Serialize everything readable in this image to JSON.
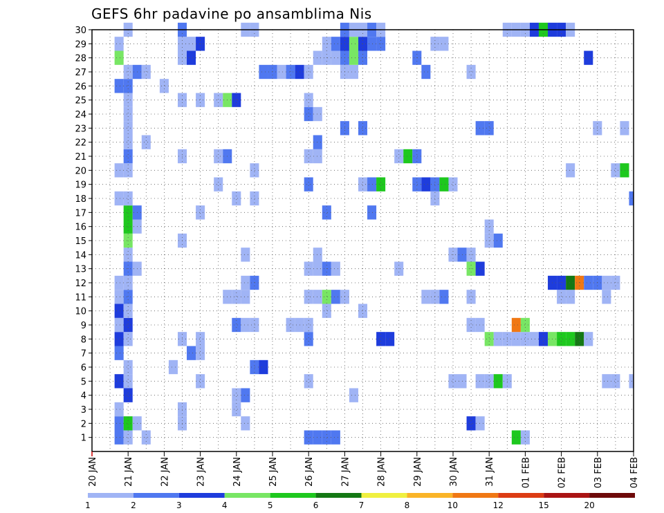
{
  "chart_data": {
    "type": "heatmap",
    "title": "GEFS 6hr padavine po ansamblima Nis",
    "xlabel": "",
    "ylabel": "",
    "x_ticks": [
      "20 JAN",
      "21 JAN",
      "22 JAN",
      "23 JAN",
      "24 JAN",
      "25 JAN",
      "26 JAN",
      "27 JAN",
      "28 JAN",
      "29 JAN",
      "30 JAN",
      "31 JAN",
      "01 FEB",
      "02 FEB",
      "03 FEB",
      "04 FEB"
    ],
    "y_ticks": [
      1,
      2,
      3,
      4,
      5,
      6,
      7,
      8,
      9,
      10,
      11,
      12,
      13,
      14,
      15,
      16,
      17,
      18,
      19,
      20,
      21,
      22,
      23,
      24,
      25,
      26,
      27,
      28,
      29,
      30
    ],
    "xlim_steps": [
      0,
      60
    ],
    "x_step_hours": 6,
    "ylim": [
      0,
      30
    ],
    "grid": true,
    "legend": {
      "placement": "bottom",
      "labels": [
        "1",
        "2",
        "3",
        "4",
        "5",
        "6",
        "7",
        "8",
        "10",
        "12",
        "15",
        "20"
      ],
      "colors": [
        "#a0b4f5",
        "#5078f0",
        "#1e3cdc",
        "#78e664",
        "#1ec81e",
        "#147814",
        "#f0f040",
        "#fab428",
        "#f07814",
        "#dc3c14",
        "#aa1414",
        "#6e0a0a"
      ]
    },
    "cell_rows": [
      {
        "ensemble": 1,
        "cells": [
          [
            3,
            2
          ],
          [
            4,
            1
          ],
          [
            6,
            1
          ],
          [
            24,
            2
          ],
          [
            25,
            2
          ],
          [
            26,
            2
          ],
          [
            27,
            2
          ],
          [
            47,
            5
          ],
          [
            48,
            1
          ]
        ]
      },
      {
        "ensemble": 2,
        "cells": [
          [
            3,
            2
          ],
          [
            4,
            5
          ],
          [
            5,
            1
          ],
          [
            10,
            1
          ],
          [
            17,
            1
          ],
          [
            42,
            3
          ],
          [
            43,
            1
          ]
        ]
      },
      {
        "ensemble": 3,
        "cells": [
          [
            3,
            1
          ],
          [
            10,
            1
          ],
          [
            16,
            1
          ]
        ]
      },
      {
        "ensemble": 4,
        "cells": [
          [
            4,
            3
          ],
          [
            16,
            1
          ],
          [
            17,
            2
          ],
          [
            29,
            1
          ]
        ]
      },
      {
        "ensemble": 5,
        "cells": [
          [
            3,
            3
          ],
          [
            4,
            1
          ],
          [
            12,
            1
          ],
          [
            24,
            1
          ],
          [
            40,
            1
          ],
          [
            41,
            1
          ],
          [
            43,
            1
          ],
          [
            44,
            1
          ],
          [
            45,
            5
          ],
          [
            46,
            1
          ],
          [
            57,
            1
          ],
          [
            58,
            1
          ],
          [
            60,
            1
          ]
        ]
      },
      {
        "ensemble": 6,
        "cells": [
          [
            4,
            1
          ],
          [
            9,
            1
          ],
          [
            18,
            2
          ],
          [
            19,
            3
          ]
        ]
      },
      {
        "ensemble": 7,
        "cells": [
          [
            3,
            2
          ],
          [
            11,
            2
          ],
          [
            12,
            1
          ]
        ]
      },
      {
        "ensemble": 8,
        "cells": [
          [
            3,
            3
          ],
          [
            4,
            1
          ],
          [
            10,
            1
          ],
          [
            12,
            1
          ],
          [
            24,
            2
          ],
          [
            32,
            3
          ],
          [
            33,
            3
          ],
          [
            44,
            4
          ],
          [
            45,
            1
          ],
          [
            46,
            1
          ],
          [
            47,
            1
          ],
          [
            48,
            1
          ],
          [
            49,
            1
          ],
          [
            50,
            3
          ],
          [
            51,
            4
          ],
          [
            52,
            5
          ],
          [
            53,
            5
          ],
          [
            54,
            6
          ],
          [
            55,
            1
          ]
        ]
      },
      {
        "ensemble": 9,
        "cells": [
          [
            3,
            1
          ],
          [
            4,
            3
          ],
          [
            16,
            2
          ],
          [
            17,
            1
          ],
          [
            18,
            1
          ],
          [
            22,
            1
          ],
          [
            23,
            1
          ],
          [
            24,
            1
          ],
          [
            42,
            1
          ],
          [
            43,
            1
          ],
          [
            47,
            9
          ],
          [
            48,
            4
          ]
        ]
      },
      {
        "ensemble": 10,
        "cells": [
          [
            3,
            3
          ],
          [
            4,
            1
          ],
          [
            26,
            1
          ],
          [
            30,
            1
          ]
        ]
      },
      {
        "ensemble": 11,
        "cells": [
          [
            3,
            1
          ],
          [
            4,
            2
          ],
          [
            15,
            1
          ],
          [
            16,
            1
          ],
          [
            17,
            1
          ],
          [
            24,
            1
          ],
          [
            25,
            1
          ],
          [
            26,
            4
          ],
          [
            27,
            2
          ],
          [
            28,
            1
          ],
          [
            37,
            1
          ],
          [
            38,
            1
          ],
          [
            39,
            2
          ],
          [
            42,
            1
          ],
          [
            52,
            1
          ],
          [
            53,
            1
          ],
          [
            57,
            1
          ]
        ]
      },
      {
        "ensemble": 12,
        "cells": [
          [
            3,
            1
          ],
          [
            4,
            1
          ],
          [
            17,
            1
          ],
          [
            18,
            2
          ],
          [
            51,
            3
          ],
          [
            52,
            3
          ],
          [
            53,
            6
          ],
          [
            54,
            9
          ],
          [
            55,
            2
          ],
          [
            56,
            2
          ],
          [
            57,
            1
          ],
          [
            58,
            1
          ]
        ]
      },
      {
        "ensemble": 13,
        "cells": [
          [
            4,
            2
          ],
          [
            5,
            1
          ],
          [
            24,
            1
          ],
          [
            25,
            1
          ],
          [
            26,
            2
          ],
          [
            27,
            1
          ],
          [
            34,
            1
          ],
          [
            42,
            4
          ],
          [
            43,
            3
          ]
        ]
      },
      {
        "ensemble": 14,
        "cells": [
          [
            4,
            1
          ],
          [
            17,
            1
          ],
          [
            25,
            1
          ],
          [
            40,
            1
          ],
          [
            41,
            2
          ],
          [
            42,
            1
          ]
        ]
      },
      {
        "ensemble": 15,
        "cells": [
          [
            4,
            4
          ],
          [
            10,
            1
          ],
          [
            44,
            1
          ],
          [
            45,
            2
          ]
        ]
      },
      {
        "ensemble": 16,
        "cells": [
          [
            4,
            5
          ],
          [
            5,
            1
          ],
          [
            44,
            1
          ]
        ]
      },
      {
        "ensemble": 17,
        "cells": [
          [
            4,
            5
          ],
          [
            5,
            2
          ],
          [
            12,
            1
          ],
          [
            26,
            2
          ],
          [
            31,
            2
          ]
        ]
      },
      {
        "ensemble": 18,
        "cells": [
          [
            3,
            1
          ],
          [
            4,
            1
          ],
          [
            16,
            1
          ],
          [
            18,
            1
          ],
          [
            38,
            1
          ],
          [
            60,
            2
          ]
        ]
      },
      {
        "ensemble": 19,
        "cells": [
          [
            14,
            1
          ],
          [
            24,
            2
          ],
          [
            30,
            1
          ],
          [
            31,
            2
          ],
          [
            32,
            5
          ],
          [
            36,
            2
          ],
          [
            37,
            3
          ],
          [
            38,
            2
          ],
          [
            39,
            5
          ],
          [
            40,
            1
          ]
        ]
      },
      {
        "ensemble": 20,
        "cells": [
          [
            3,
            1
          ],
          [
            4,
            1
          ],
          [
            18,
            1
          ],
          [
            53,
            1
          ],
          [
            58,
            1
          ],
          [
            59,
            5
          ]
        ]
      },
      {
        "ensemble": 21,
        "cells": [
          [
            4,
            2
          ],
          [
            10,
            1
          ],
          [
            14,
            1
          ],
          [
            15,
            2
          ],
          [
            24,
            1
          ],
          [
            25,
            1
          ],
          [
            34,
            1
          ],
          [
            35,
            5
          ],
          [
            36,
            2
          ]
        ]
      },
      {
        "ensemble": 22,
        "cells": [
          [
            4,
            1
          ],
          [
            6,
            1
          ],
          [
            25,
            2
          ]
        ]
      },
      {
        "ensemble": 23,
        "cells": [
          [
            4,
            1
          ],
          [
            28,
            2
          ],
          [
            30,
            2
          ],
          [
            43,
            2
          ],
          [
            44,
            2
          ],
          [
            56,
            1
          ],
          [
            59,
            1
          ]
        ]
      },
      {
        "ensemble": 24,
        "cells": [
          [
            4,
            1
          ],
          [
            24,
            2
          ],
          [
            25,
            1
          ]
        ]
      },
      {
        "ensemble": 25,
        "cells": [
          [
            4,
            1
          ],
          [
            10,
            1
          ],
          [
            12,
            1
          ],
          [
            14,
            1
          ],
          [
            15,
            4
          ],
          [
            16,
            3
          ],
          [
            24,
            1
          ]
        ]
      },
      {
        "ensemble": 26,
        "cells": [
          [
            3,
            2
          ],
          [
            4,
            2
          ],
          [
            8,
            1
          ]
        ]
      },
      {
        "ensemble": 27,
        "cells": [
          [
            4,
            1
          ],
          [
            5,
            2
          ],
          [
            6,
            1
          ],
          [
            19,
            2
          ],
          [
            20,
            2
          ],
          [
            21,
            1
          ],
          [
            22,
            2
          ],
          [
            23,
            3
          ],
          [
            24,
            1
          ],
          [
            28,
            1
          ],
          [
            29,
            1
          ],
          [
            37,
            2
          ],
          [
            42,
            1
          ]
        ]
      },
      {
        "ensemble": 28,
        "cells": [
          [
            3,
            4
          ],
          [
            10,
            1
          ],
          [
            11,
            3
          ],
          [
            25,
            1
          ],
          [
            26,
            1
          ],
          [
            27,
            1
          ],
          [
            28,
            2
          ],
          [
            29,
            4
          ],
          [
            30,
            2
          ],
          [
            36,
            2
          ],
          [
            55,
            3
          ]
        ]
      },
      {
        "ensemble": 29,
        "cells": [
          [
            3,
            1
          ],
          [
            10,
            1
          ],
          [
            11,
            1
          ],
          [
            12,
            3
          ],
          [
            26,
            1
          ],
          [
            27,
            2
          ],
          [
            28,
            3
          ],
          [
            29,
            4
          ],
          [
            30,
            3
          ],
          [
            31,
            2
          ],
          [
            32,
            2
          ],
          [
            38,
            1
          ],
          [
            39,
            1
          ]
        ]
      },
      {
        "ensemble": 30,
        "cells": [
          [
            4,
            1
          ],
          [
            10,
            2
          ],
          [
            17,
            1
          ],
          [
            18,
            1
          ],
          [
            28,
            2
          ],
          [
            29,
            1
          ],
          [
            30,
            1
          ],
          [
            31,
            2
          ],
          [
            32,
            1
          ],
          [
            46,
            1
          ],
          [
            47,
            1
          ],
          [
            48,
            1
          ],
          [
            49,
            3
          ],
          [
            50,
            5
          ],
          [
            51,
            3
          ],
          [
            52,
            3
          ],
          [
            53,
            1
          ]
        ]
      }
    ]
  }
}
